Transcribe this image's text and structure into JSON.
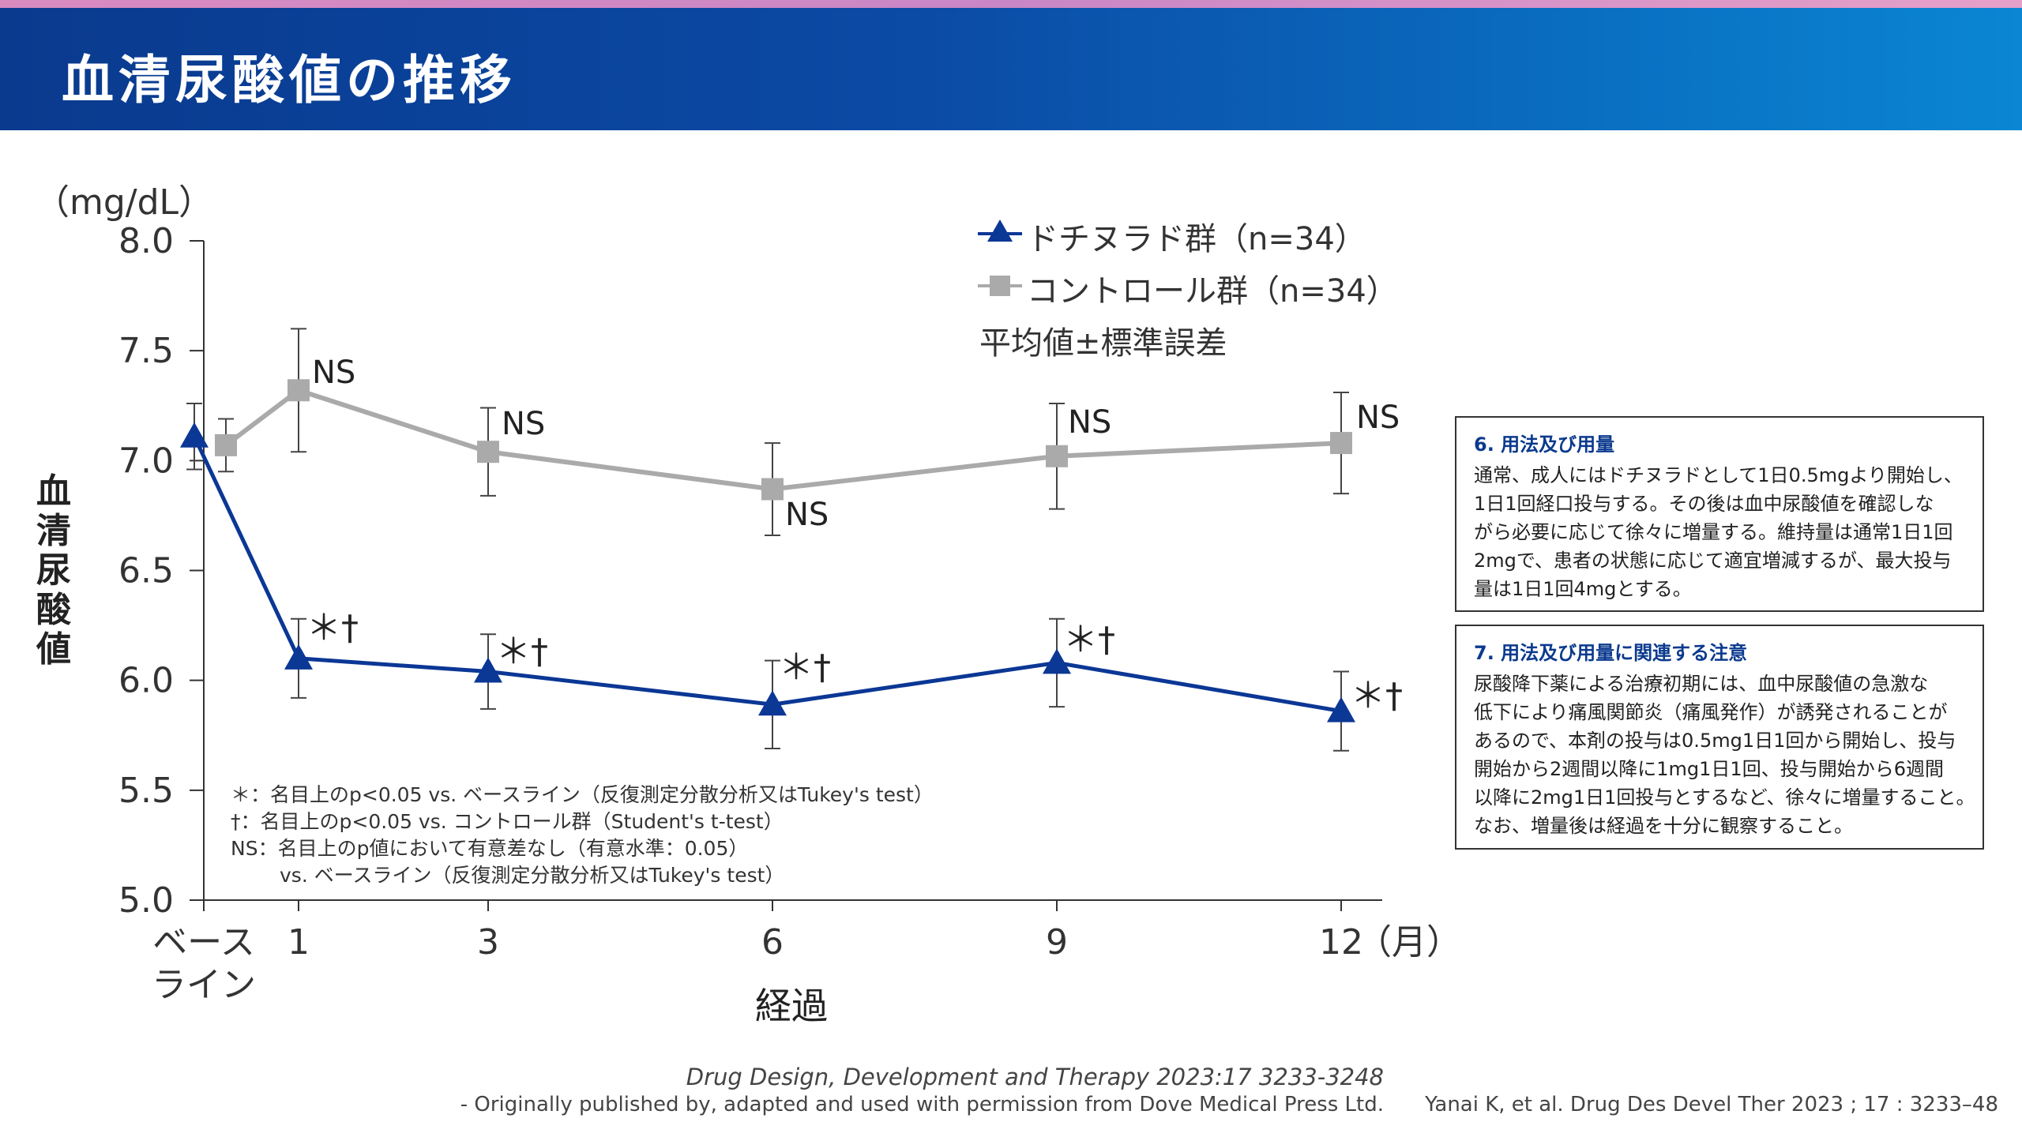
{
  "header": {
    "title": "血清尿酸値の推移"
  },
  "chart_data": {
    "type": "line",
    "ylabel": "血清尿酸値",
    "yunit": "（mg/dL）",
    "xlabel": "経過",
    "xunit": "（月）",
    "ylim": [
      5.0,
      8.0
    ],
    "yticks": [
      "5.0",
      "5.5",
      "6.0",
      "6.5",
      "7.0",
      "7.5",
      "8.0"
    ],
    "x": [
      0,
      1,
      3,
      6,
      9,
      12
    ],
    "xticks": [
      {
        "x": 0,
        "label": [
          "ベース",
          "ライン"
        ]
      },
      {
        "x": 1,
        "label": [
          "1"
        ]
      },
      {
        "x": 3,
        "label": [
          "3"
        ]
      },
      {
        "x": 6,
        "label": [
          "6"
        ]
      },
      {
        "x": 9,
        "label": [
          "9"
        ]
      },
      {
        "x": 12,
        "label": [
          "12"
        ]
      }
    ],
    "series": [
      {
        "name": "ドチヌラド群（n=34）",
        "color": "#0b3795",
        "marker": "triangle",
        "values": [
          7.11,
          6.1,
          6.04,
          5.89,
          6.08,
          5.86
        ],
        "err": [
          0.15,
          0.18,
          0.17,
          0.2,
          0.2,
          0.18
        ],
        "annotations": [
          "",
          "＊†",
          "＊†",
          "＊†",
          "＊†",
          "＊†"
        ]
      },
      {
        "name": "コントロール群（n=34）",
        "color": "#aaaaaa",
        "marker": "square",
        "values": [
          7.07,
          7.32,
          7.04,
          6.87,
          7.02,
          7.08
        ],
        "err": [
          0.12,
          0.28,
          0.2,
          0.21,
          0.24,
          0.23
        ],
        "annotations": [
          "",
          "NS",
          "NS",
          "NS",
          "NS",
          "NS"
        ]
      }
    ],
    "legend_note": "平均値±標準誤差",
    "notes": [
      "＊：名目上のp<0.05 vs. ベースライン（反復測定分散分析又はTukey's test）",
      "†：名目上のp<0.05 vs. コントロール群（Student's t-test）",
      "NS：名目上のp値において有意差なし（有意水準：0.05）",
      "vs. ベースライン（反復測定分散分析又はTukey's test）"
    ]
  },
  "info_boxes": [
    {
      "title": "6. 用法及び用量",
      "lines": [
        "通常、成人にはドチヌラドとして1日0.5mgより開始し、",
        "1日1回経口投与する。その後は血中尿酸値を確認しな",
        "がら必要に応じて徐々に増量する。維持量は通常1日1回",
        "2mgで、患者の状態に応じて適宜増減するが、最大投与",
        "量は1日1回4mgとする。"
      ]
    },
    {
      "title": "7. 用法及び用量に関連する注意",
      "lines": [
        "尿酸降下薬による治療初期には、血中尿酸値の急激な",
        "低下により痛風関節炎（痛風発作）が誘発されることが",
        "あるので、本剤の投与は0.5mg1日1回から開始し、投与",
        "開始から2週間以降に1mg1日1回、投与開始から6週間",
        "以降に2mg1日1回投与とするなど、徐々に増量すること。",
        "なお、増量後は経過を十分に観察すること。"
      ]
    }
  ],
  "footer": {
    "journal": "Drug Design, Development and Therapy 2023:17 3233-3248",
    "permission": "- Originally published by, adapted and used with permission from Dove Medical Press Ltd.",
    "citation": "Yanai K, et al. Drug Des Devel Ther 2023 ; 17 : 3233–48"
  }
}
